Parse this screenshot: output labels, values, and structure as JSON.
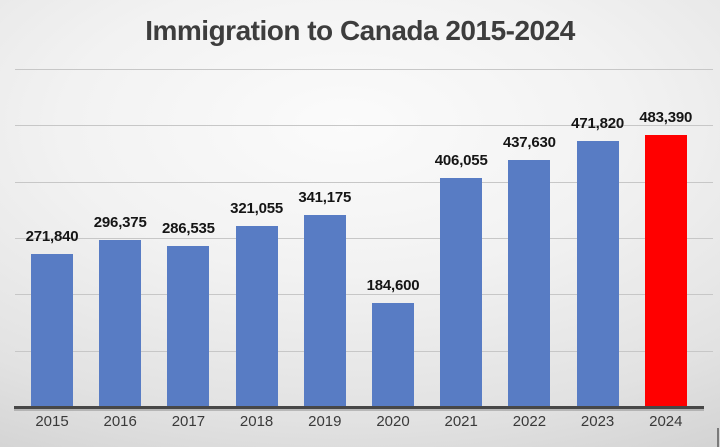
{
  "chart_data": {
    "type": "bar",
    "title": "Immigration to Canada 2015-2024",
    "categories": [
      "2015",
      "2016",
      "2017",
      "2018",
      "2019",
      "2020",
      "2021",
      "2022",
      "2023",
      "2024"
    ],
    "values": [
      271840,
      296375,
      286535,
      321055,
      341175,
      184600,
      406055,
      437630,
      471820,
      483390
    ],
    "value_labels": [
      "271,840",
      "296,375",
      "286,535",
      "321,055",
      "341,175",
      "184,600",
      "406,055",
      "437,630",
      "471,820",
      "483,390"
    ],
    "xlabel": "",
    "ylabel": "",
    "ylim": [
      0,
      600000
    ],
    "gridline_step": 100000,
    "grid": true,
    "legend": false,
    "y_tick_labels_visible": false,
    "data_labels_visible": true,
    "bar_color": "#587CC4",
    "highlight_color": "#FF0000",
    "highlight_index": 9,
    "title_color": "#3D3D3D",
    "data_label_color": "#151515",
    "tick_label_color": "#3A3A3A",
    "gridline_color": "#C7C7C7",
    "axis_line_color": "#474747"
  }
}
